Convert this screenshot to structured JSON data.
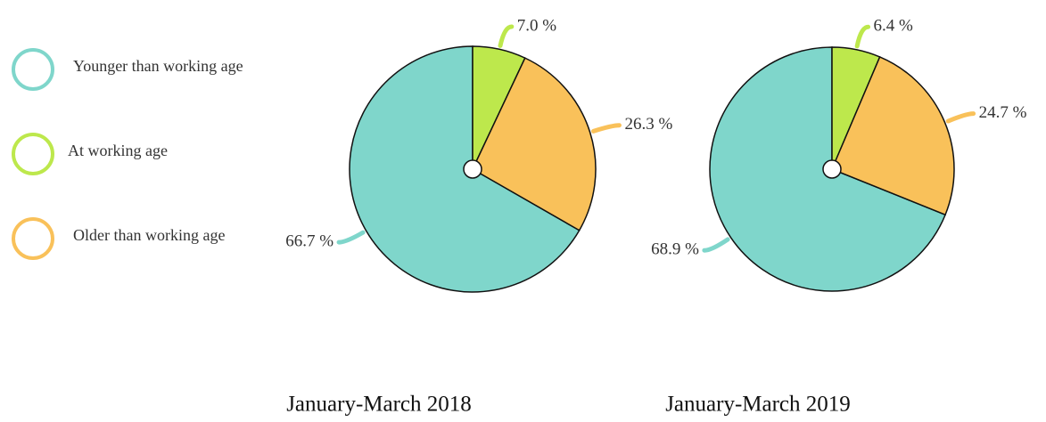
{
  "chart_data": [
    {
      "type": "pie",
      "title": "January-March 2018",
      "categories": [
        "Younger than working age",
        "At working age",
        "Older than working age"
      ],
      "values": [
        66.7,
        7.0,
        26.3
      ],
      "value_labels": [
        "66.7 %",
        "7.0 %",
        "26.3 %"
      ],
      "colors": [
        "#7fd6cb",
        "#bde84c",
        "#f9c15a"
      ]
    },
    {
      "type": "pie",
      "title": "January-March 2019",
      "values": [
        68.9,
        6.4,
        24.7
      ],
      "value_labels": [
        "68.9 %",
        "6.4 %",
        "24.7 %"
      ],
      "colors": [
        "#7fd6cb",
        "#bde84c",
        "#f9c15a"
      ]
    }
  ]
}
